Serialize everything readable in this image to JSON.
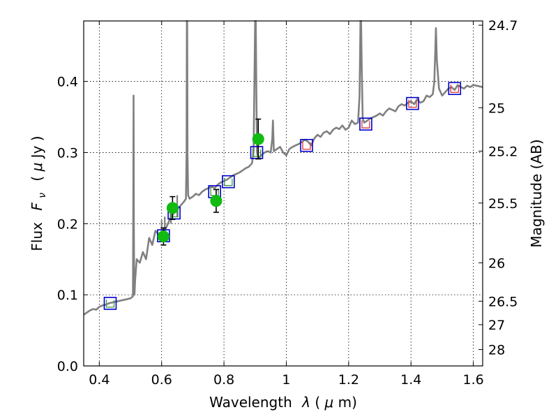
{
  "chart_data": {
    "type": "scatter",
    "xlabel": "Wavelength",
    "xlabel_symbol": "λ",
    "xlabel_unit_open": " (",
    "xlabel_unit_mu": "μ",
    "xlabel_unit_close": "m)",
    "ylabel": "Flux",
    "ylabel_symbol": "F",
    "ylabel_subscript": "ν",
    "ylabel_unit_open": "( ",
    "ylabel_unit_mu": "μ",
    "ylabel_unit_close": "Jy )",
    "y2label": "Magnitude (AB)",
    "xlim": [
      0.35,
      1.63
    ],
    "ylim": [
      0.0,
      0.485
    ],
    "grid": true,
    "x_ticks": [
      {
        "v": 0.4,
        "label": "0.4"
      },
      {
        "v": 0.6,
        "label": "0.6"
      },
      {
        "v": 0.8,
        "label": "0.8"
      },
      {
        "v": 1.0,
        "label": "1"
      },
      {
        "v": 1.2,
        "label": "1.2"
      },
      {
        "v": 1.4,
        "label": "1.4"
      },
      {
        "v": 1.6,
        "label": "1.6"
      }
    ],
    "y_ticks": [
      {
        "v": 0.0,
        "label": "0.0"
      },
      {
        "v": 0.1,
        "label": "0.1"
      },
      {
        "v": 0.2,
        "label": "0.2"
      },
      {
        "v": 0.3,
        "label": "0.3"
      },
      {
        "v": 0.4,
        "label": "0.4"
      }
    ],
    "y2_ticks": [
      {
        "flux": 0.479,
        "label": "24.7"
      },
      {
        "flux": 0.363,
        "label": "25"
      },
      {
        "flux": 0.302,
        "label": "25.2"
      },
      {
        "flux": 0.229,
        "label": "25.5"
      },
      {
        "flux": 0.145,
        "label": "26"
      },
      {
        "flux": 0.091,
        "label": "26.5"
      },
      {
        "flux": 0.058,
        "label": "27"
      },
      {
        "flux": 0.023,
        "label": "28"
      }
    ],
    "colors": {
      "spectrum": "#808080",
      "model_box": "#0000cc",
      "model_line_opt": "#3a9a3a",
      "model_line_ir": "#dd3333",
      "observed": "#11bb11",
      "errorbar": "#000000"
    },
    "spectrum": {
      "name": "SED model spectrum",
      "x": [
        0.35,
        0.36,
        0.37,
        0.38,
        0.39,
        0.4,
        0.41,
        0.42,
        0.43,
        0.44,
        0.45,
        0.46,
        0.47,
        0.48,
        0.49,
        0.5,
        0.508,
        0.509,
        0.51,
        0.511,
        0.512,
        0.513,
        0.515,
        0.52,
        0.53,
        0.54,
        0.55,
        0.56,
        0.57,
        0.58,
        0.59,
        0.6,
        0.61,
        0.62,
        0.63,
        0.64,
        0.65,
        0.66,
        0.67,
        0.678,
        0.68,
        0.681,
        0.682,
        0.683,
        0.685,
        0.69,
        0.7,
        0.71,
        0.72,
        0.73,
        0.74,
        0.75,
        0.76,
        0.77,
        0.78,
        0.79,
        0.8,
        0.81,
        0.82,
        0.83,
        0.84,
        0.85,
        0.86,
        0.87,
        0.88,
        0.89,
        0.895,
        0.9,
        0.902,
        0.904,
        0.906,
        0.91,
        0.92,
        0.93,
        0.94,
        0.95,
        0.955,
        0.957,
        0.96,
        0.97,
        0.98,
        0.99,
        1.0,
        1.01,
        1.02,
        1.03,
        1.04,
        1.05,
        1.06,
        1.07,
        1.08,
        1.09,
        1.1,
        1.11,
        1.12,
        1.13,
        1.14,
        1.15,
        1.16,
        1.17,
        1.18,
        1.19,
        1.2,
        1.21,
        1.22,
        1.23,
        1.235,
        1.238,
        1.24,
        1.242,
        1.245,
        1.25,
        1.26,
        1.27,
        1.28,
        1.29,
        1.3,
        1.31,
        1.32,
        1.33,
        1.34,
        1.35,
        1.36,
        1.37,
        1.38,
        1.39,
        1.4,
        1.41,
        1.42,
        1.43,
        1.44,
        1.45,
        1.46,
        1.47,
        1.475,
        1.478,
        1.48,
        1.483,
        1.49,
        1.5,
        1.51,
        1.52,
        1.53,
        1.54,
        1.55,
        1.56,
        1.57,
        1.58,
        1.59,
        1.6,
        1.61,
        1.62,
        1.63
      ],
      "y": [
        0.072,
        0.075,
        0.078,
        0.08,
        0.079,
        0.083,
        0.085,
        0.086,
        0.088,
        0.089,
        0.09,
        0.091,
        0.092,
        0.093,
        0.094,
        0.095,
        0.098,
        0.23,
        0.38,
        0.2,
        0.11,
        0.1,
        0.12,
        0.15,
        0.145,
        0.16,
        0.15,
        0.18,
        0.17,
        0.19,
        0.185,
        0.18,
        0.19,
        0.2,
        0.21,
        0.215,
        0.22,
        0.225,
        0.23,
        0.235,
        0.3,
        0.485,
        0.485,
        0.3,
        0.24,
        0.235,
        0.238,
        0.242,
        0.24,
        0.245,
        0.248,
        0.25,
        0.252,
        0.25,
        0.255,
        0.258,
        0.26,
        0.262,
        0.265,
        0.268,
        0.27,
        0.272,
        0.275,
        0.278,
        0.28,
        0.285,
        0.3,
        0.485,
        0.485,
        0.38,
        0.3,
        0.292,
        0.296,
        0.3,
        0.302,
        0.3,
        0.32,
        0.345,
        0.302,
        0.305,
        0.308,
        0.3,
        0.296,
        0.305,
        0.308,
        0.31,
        0.312,
        0.315,
        0.318,
        0.315,
        0.31,
        0.32,
        0.325,
        0.322,
        0.328,
        0.33,
        0.326,
        0.332,
        0.335,
        0.333,
        0.338,
        0.332,
        0.335,
        0.345,
        0.34,
        0.342,
        0.38,
        0.485,
        0.485,
        0.42,
        0.348,
        0.342,
        0.345,
        0.348,
        0.35,
        0.352,
        0.355,
        0.352,
        0.358,
        0.362,
        0.36,
        0.358,
        0.365,
        0.368,
        0.366,
        0.37,
        0.372,
        0.368,
        0.375,
        0.37,
        0.372,
        0.38,
        0.378,
        0.382,
        0.4,
        0.445,
        0.475,
        0.43,
        0.39,
        0.38,
        0.385,
        0.39,
        0.392,
        0.388,
        0.395,
        0.392,
        0.39,
        0.394,
        0.392,
        0.395,
        0.394,
        0.393,
        0.392
      ],
      "mini_peaks": [
        {
          "x": 0.6,
          "y": 0.205
        },
        {
          "x": 0.61,
          "y": 0.21
        },
        {
          "x": 0.63,
          "y": 0.23
        },
        {
          "x": 0.65,
          "y": 0.24
        }
      ]
    },
    "model_points": [
      {
        "x": 0.435,
        "y": 0.088,
        "band": "optical"
      },
      {
        "x": 0.606,
        "y": 0.183,
        "band": "optical"
      },
      {
        "x": 0.64,
        "y": 0.215,
        "band": "optical"
      },
      {
        "x": 0.77,
        "y": 0.245,
        "band": "optical"
      },
      {
        "x": 0.814,
        "y": 0.259,
        "band": "optical"
      },
      {
        "x": 0.905,
        "y": 0.3,
        "band": "optical"
      },
      {
        "x": 1.065,
        "y": 0.31,
        "band": "ir"
      },
      {
        "x": 1.255,
        "y": 0.34,
        "band": "ir"
      },
      {
        "x": 1.405,
        "y": 0.369,
        "band": "ir"
      },
      {
        "x": 1.54,
        "y": 0.39,
        "band": "ir"
      }
    ],
    "observed_points": [
      {
        "x": 0.606,
        "y": 0.182,
        "err": 0.012
      },
      {
        "x": 0.635,
        "y": 0.222,
        "err": 0.016
      },
      {
        "x": 0.775,
        "y": 0.232,
        "err": 0.016
      },
      {
        "x": 0.91,
        "y": 0.319,
        "err": 0.028
      }
    ]
  }
}
